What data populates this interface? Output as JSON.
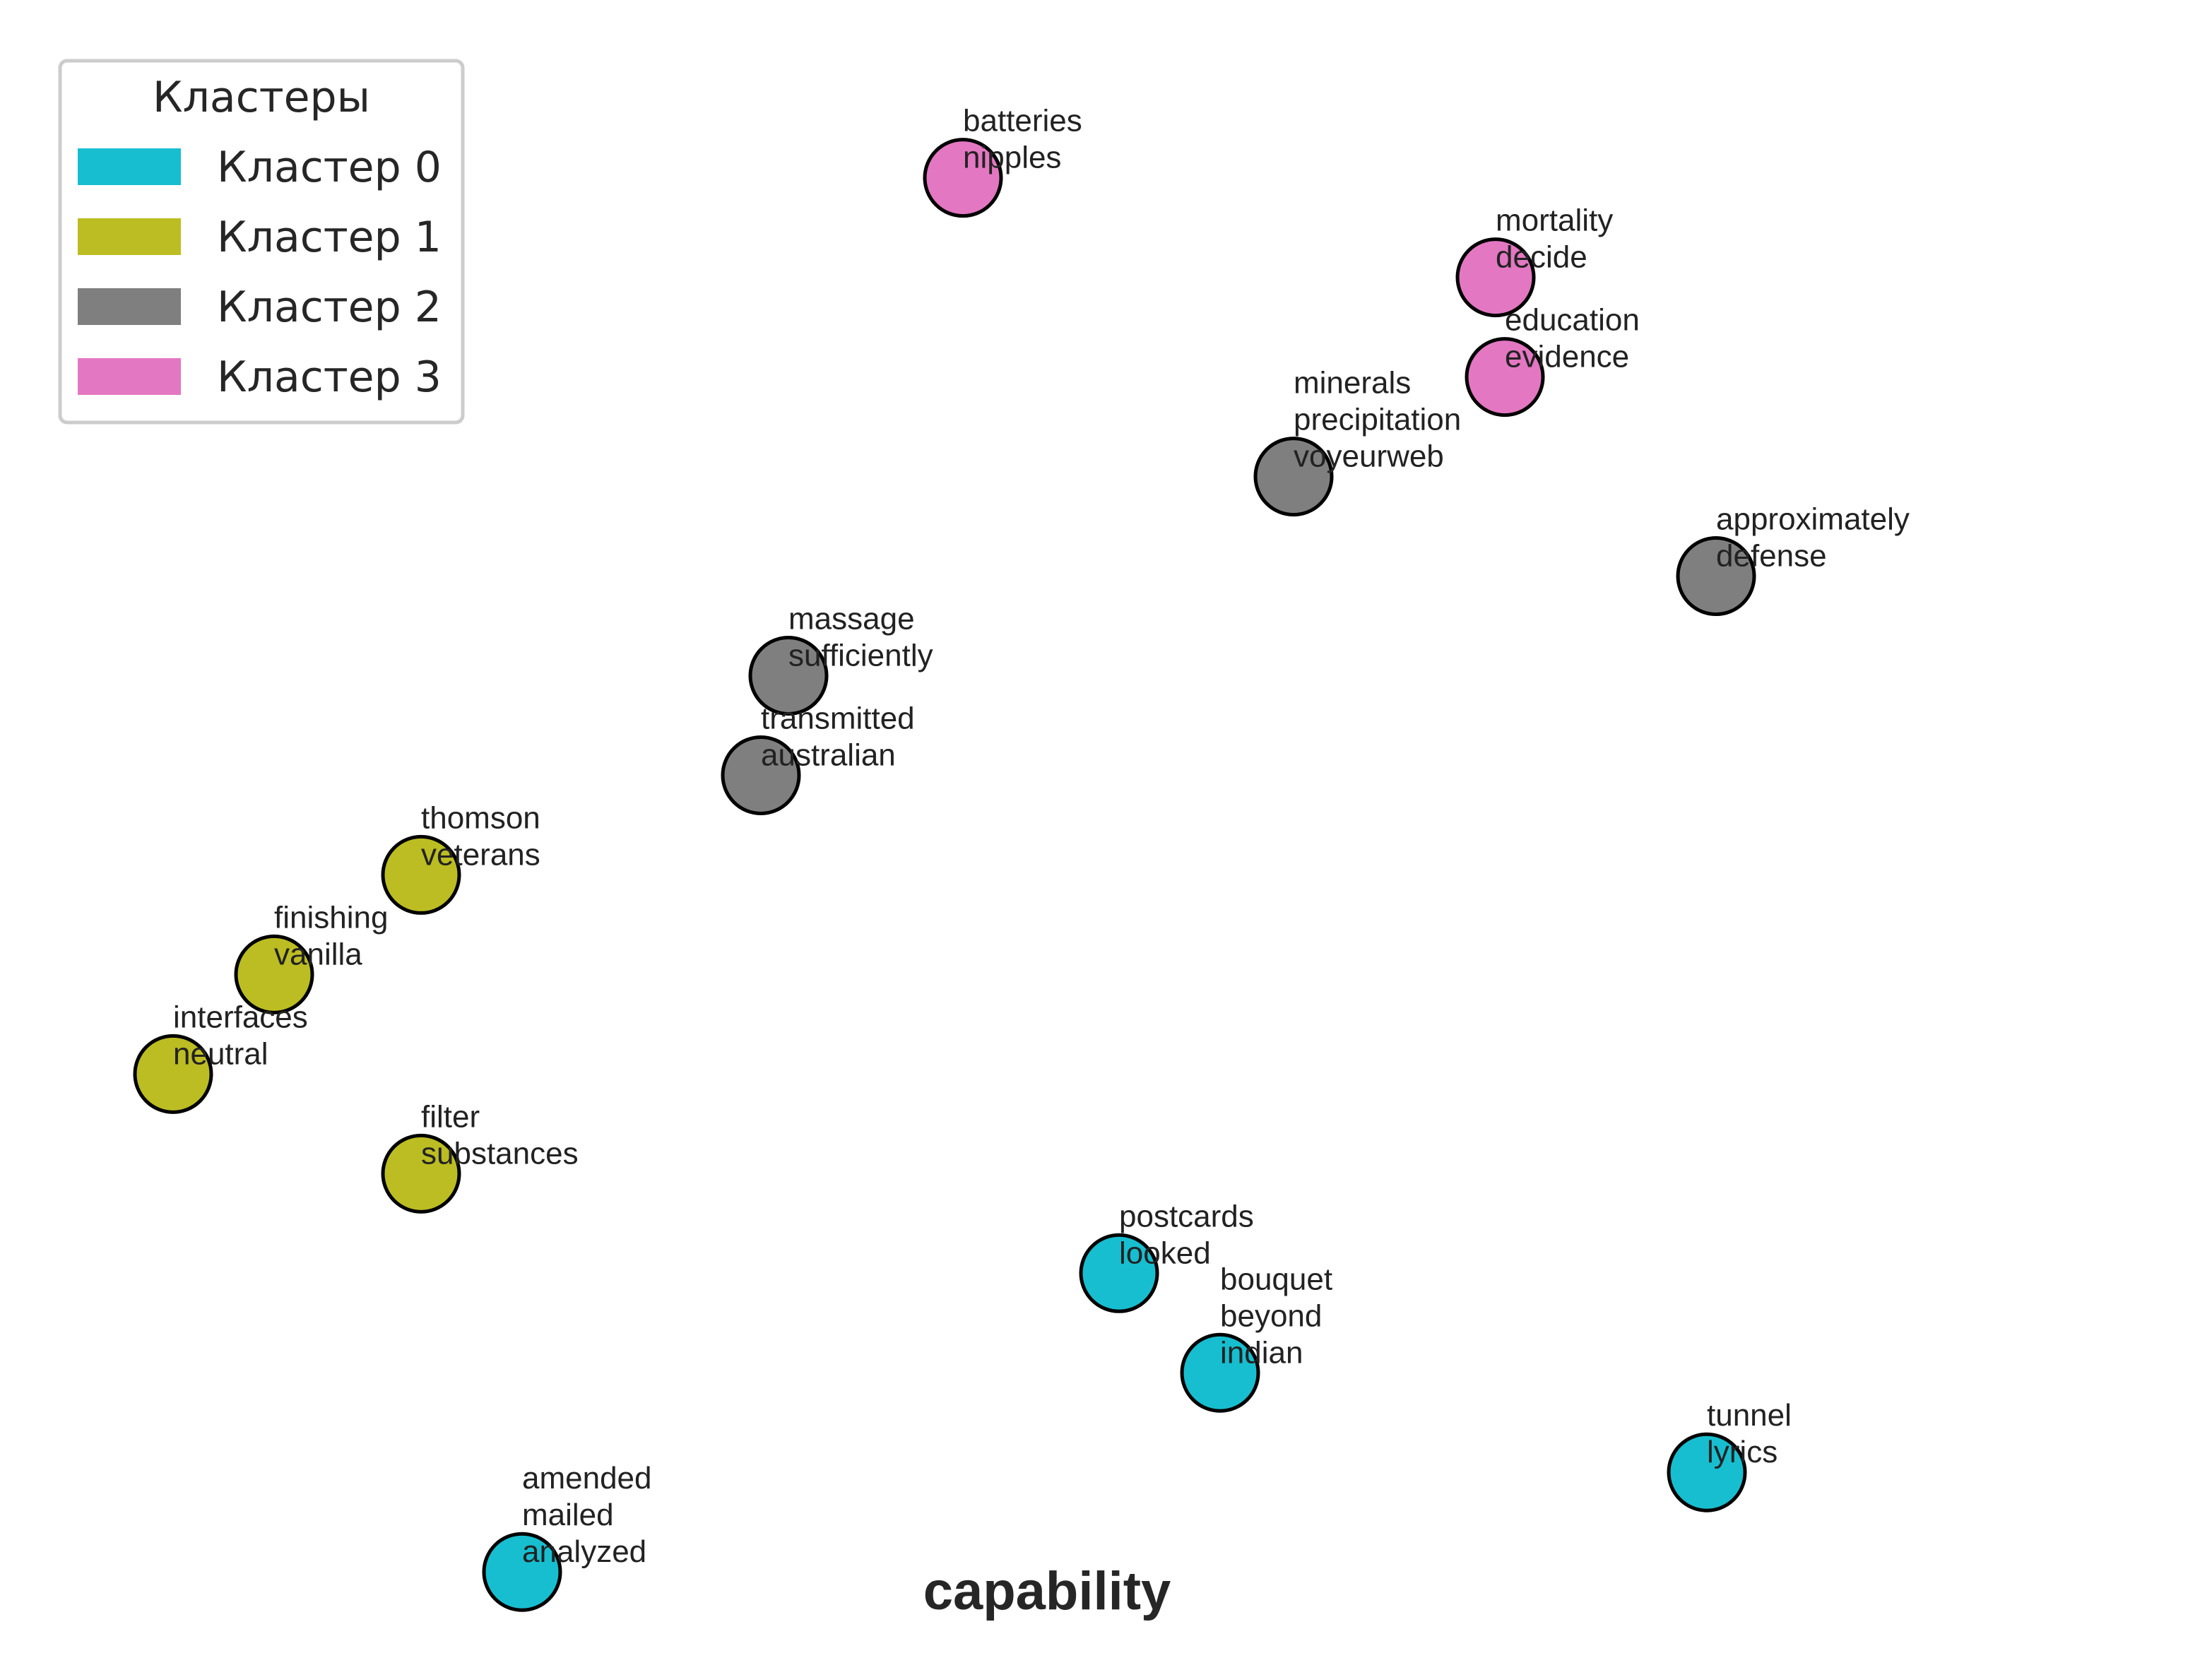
{
  "chart_data": {
    "type": "scatter",
    "title": "",
    "xlabel": "capability",
    "ylabel": "",
    "grid": false,
    "legend": {
      "title": "Кластеры",
      "placement": "top-left",
      "entries": [
        {
          "name": "Кластер 0",
          "color": "#17becf"
        },
        {
          "name": "Кластер 1",
          "color": "#bcbd22"
        },
        {
          "name": "Кластер 2",
          "color": "#7f7f7f"
        },
        {
          "name": "Кластер 3",
          "color": "#e377c2"
        }
      ]
    },
    "xlim": [
      0,
      20
    ],
    "ylim": [
      0,
      14.5
    ],
    "points": [
      {
        "x": 9.1,
        "y": 13.8,
        "cluster": 3,
        "labels": [
          "batteries",
          "nipples"
        ]
      },
      {
        "x": 14.9,
        "y": 12.8,
        "cluster": 3,
        "labels": [
          "mortality",
          "decide"
        ]
      },
      {
        "x": 15.0,
        "y": 11.8,
        "cluster": 3,
        "labels": [
          "education",
          "evidence"
        ]
      },
      {
        "x": 12.7,
        "y": 10.8,
        "cluster": 2,
        "labels": [
          "minerals",
          "precipitation",
          "voyeurweb"
        ]
      },
      {
        "x": 17.3,
        "y": 9.8,
        "cluster": 2,
        "labels": [
          "approximately",
          "defense"
        ]
      },
      {
        "x": 7.2,
        "y": 8.8,
        "cluster": 2,
        "labels": [
          "massage",
          "sufficiently"
        ]
      },
      {
        "x": 6.9,
        "y": 7.8,
        "cluster": 2,
        "labels": [
          "transmitted",
          "australian"
        ]
      },
      {
        "x": 3.2,
        "y": 6.8,
        "cluster": 1,
        "labels": [
          "thomson",
          "veterans"
        ]
      },
      {
        "x": 1.6,
        "y": 5.8,
        "cluster": 1,
        "labels": [
          "finishing",
          "vanilla"
        ]
      },
      {
        "x": 0.5,
        "y": 4.8,
        "cluster": 1,
        "labels": [
          "interfaces",
          "neutral"
        ]
      },
      {
        "x": 3.2,
        "y": 3.8,
        "cluster": 1,
        "labels": [
          "filter",
          "substances"
        ]
      },
      {
        "x": 10.8,
        "y": 2.8,
        "cluster": 0,
        "labels": [
          "postcards",
          "looked"
        ]
      },
      {
        "x": 11.9,
        "y": 1.8,
        "cluster": 0,
        "labels": [
          "bouquet",
          "beyond",
          "indian"
        ]
      },
      {
        "x": 17.2,
        "y": 0.8,
        "cluster": 0,
        "labels": [
          "tunnel",
          "lyrics"
        ]
      },
      {
        "x": 4.3,
        "y": -0.2,
        "cluster": 0,
        "labels": [
          "amended",
          "mailed",
          "analyzed"
        ]
      }
    ]
  }
}
